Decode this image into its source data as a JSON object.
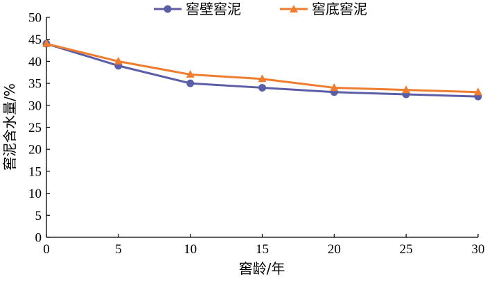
{
  "chart_data": {
    "type": "line",
    "title": "",
    "xlabel": "窖龄/年",
    "ylabel": "窖泥含水量/%",
    "x": [
      0,
      5,
      10,
      15,
      20,
      25,
      30
    ],
    "xlim": [
      0,
      30
    ],
    "ylim": [
      0,
      50
    ],
    "xticks": [
      0,
      5,
      10,
      15,
      20,
      25,
      30
    ],
    "yticks": [
      0,
      5,
      10,
      15,
      20,
      25,
      30,
      35,
      40,
      45,
      50
    ],
    "grid": false,
    "legend_position": "top-center",
    "series": [
      {
        "name": "窖壁窖泥",
        "color": "#5b5ea6",
        "marker": "circle",
        "values": [
          44,
          39,
          35,
          34,
          33,
          32.5,
          32
        ]
      },
      {
        "name": "窖底窖泥",
        "color": "#ee7d2f",
        "marker": "triangle",
        "values": [
          44,
          40,
          37,
          36,
          34,
          33.5,
          33
        ]
      }
    ]
  }
}
